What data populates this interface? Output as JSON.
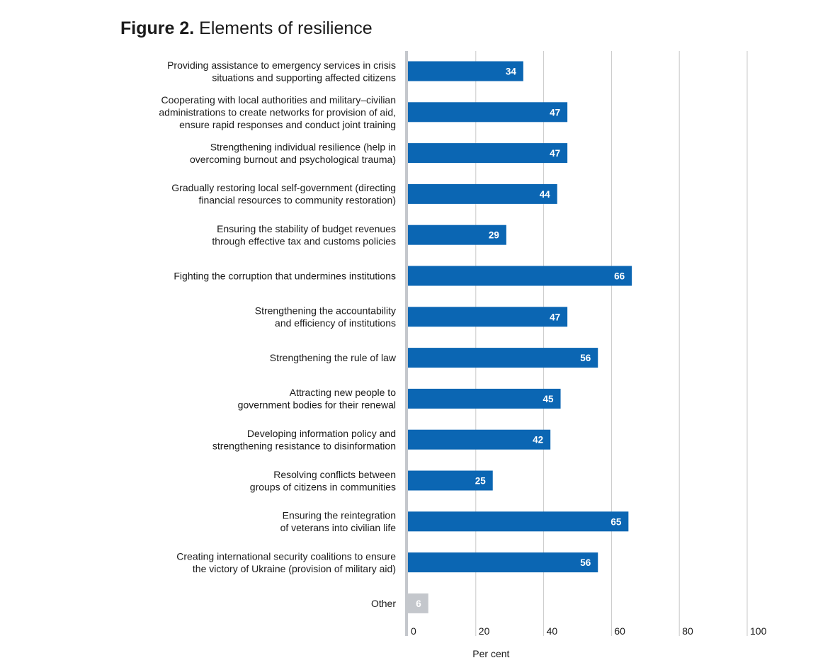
{
  "figure": {
    "number": "Figure 2.",
    "title": "Elements of resilience"
  },
  "colors": {
    "bar": "#0b66b3",
    "bar_other": "#c4c7cc",
    "grid": "#c9c9c9",
    "baseline": "#c4c7cc",
    "text": "#1a1a1a"
  },
  "chart_data": {
    "type": "bar",
    "orientation": "horizontal",
    "title": "Elements of resilience",
    "xlabel": "Per cent",
    "ylabel": "",
    "xlim": [
      0,
      100
    ],
    "xticks": [
      0,
      20,
      40,
      60,
      80,
      100
    ],
    "grid": true,
    "legend": "none",
    "categories": [
      [
        "Providing assistance to emergency services in crisis",
        "situations and supporting affected citizens"
      ],
      [
        "Cooperating with local authorities and military–civilian",
        "administrations to create networks for provision of aid,",
        "ensure rapid responses and conduct joint training"
      ],
      [
        "Strengthening individual resilience (help in",
        "overcoming burnout and psychological trauma)"
      ],
      [
        "Gradually restoring local self-government (directing",
        "financial resources to community restoration)"
      ],
      [
        "Ensuring the stability of budget revenues",
        "through effective tax and customs policies"
      ],
      [
        "Fighting the corruption that undermines institutions"
      ],
      [
        "Strengthening the accountability",
        "and efficiency of institutions"
      ],
      [
        "Strengthening the rule of law"
      ],
      [
        "Attracting new people to",
        "government bodies for their renewal"
      ],
      [
        "Developing information policy and",
        "strengthening resistance to disinformation"
      ],
      [
        "Resolving conflicts between",
        "groups of citizens in communities"
      ],
      [
        "Ensuring the reintegration",
        "of veterans into civilian life"
      ],
      [
        "Creating international security coalitions to ensure",
        "the victory of Ukraine (provision of military aid)"
      ],
      [
        "Other"
      ]
    ],
    "values": [
      34,
      47,
      47,
      44,
      29,
      66,
      47,
      56,
      45,
      42,
      25,
      65,
      56,
      6
    ],
    "highlight": [
      false,
      false,
      false,
      false,
      false,
      false,
      false,
      false,
      false,
      false,
      false,
      false,
      false,
      true
    ]
  }
}
